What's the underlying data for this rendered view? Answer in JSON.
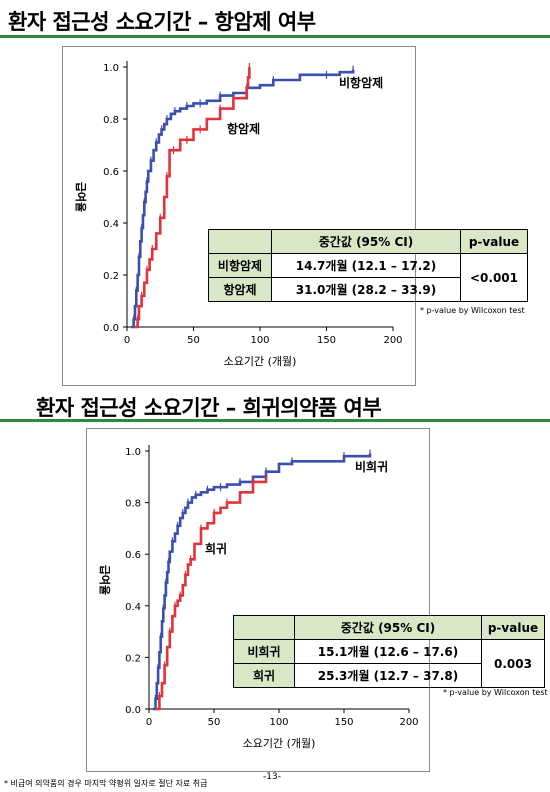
{
  "slide": {
    "title1": "환자 접근성 소요기간 – 항암제 여부",
    "title2": "환자 접근성 소요기간 – 희귀의약품 여부",
    "page_number": "-13-",
    "footnote": "* 비급여 의약품의 경우 마지막 약평위 일자로 절단 자료 취급"
  },
  "colors": {
    "blue": "#3a4fb0",
    "red": "#e2323a",
    "header_green": "#d9e7c7",
    "rule_green": "#2e8b3a"
  },
  "chart_data": [
    {
      "type": "line",
      "ylabel": "급여율",
      "xlabel": "소요기간 (개월)",
      "xlim": [
        0,
        200
      ],
      "ylim": [
        0,
        1.0
      ],
      "xticks": [
        "0",
        "50",
        "100",
        "150",
        "200"
      ],
      "yticks": [
        "0.0",
        "0.2",
        "0.4",
        "0.6",
        "0.8",
        "1.0"
      ],
      "series": [
        {
          "name": "비항암제",
          "color": "#3a4fb0",
          "x": [
            3,
            5,
            6,
            7,
            8,
            9,
            10,
            11,
            12,
            13,
            14,
            15,
            16,
            18,
            20,
            22,
            24,
            26,
            28,
            30,
            33,
            36,
            40,
            45,
            50,
            55,
            60,
            70,
            80,
            90,
            100,
            110,
            130,
            150,
            160,
            170
          ],
          "y": [
            0.0,
            0.03,
            0.08,
            0.14,
            0.2,
            0.27,
            0.33,
            0.38,
            0.43,
            0.48,
            0.52,
            0.56,
            0.6,
            0.64,
            0.68,
            0.71,
            0.74,
            0.76,
            0.78,
            0.8,
            0.82,
            0.83,
            0.84,
            0.85,
            0.86,
            0.86,
            0.87,
            0.89,
            0.9,
            0.92,
            0.93,
            0.95,
            0.97,
            0.97,
            0.98,
            0.99
          ]
        },
        {
          "name": "항암제",
          "color": "#e2323a",
          "x": [
            5,
            8,
            9,
            11,
            13,
            15,
            17,
            19,
            22,
            25,
            28,
            30,
            32,
            35,
            40,
            45,
            50,
            55,
            60,
            70,
            80,
            90,
            91,
            92
          ],
          "y": [
            0.0,
            0.03,
            0.08,
            0.12,
            0.17,
            0.22,
            0.26,
            0.3,
            0.36,
            0.42,
            0.5,
            0.58,
            0.68,
            0.68,
            0.72,
            0.72,
            0.76,
            0.76,
            0.8,
            0.84,
            0.88,
            0.92,
            0.96,
            1.0
          ]
        }
      ],
      "labels": [
        {
          "text": "비항암제",
          "series": 0
        },
        {
          "text": "항암제",
          "series": 1
        }
      ],
      "table": {
        "headers": [
          "",
          "중간값 (95% CI)",
          "p-value"
        ],
        "rows": [
          {
            "label": "비항암제",
            "median": "14.7개월 (12.1 – 17.2)"
          },
          {
            "label": "항암제",
            "median": "31.0개월 (28.2 – 33.9)"
          }
        ],
        "pvalue": "<0.001"
      },
      "note": "* p-value by Wilcoxon test"
    },
    {
      "type": "line",
      "ylabel": "급여율",
      "xlabel": "소요기간 (개월)",
      "xlim": [
        0,
        200
      ],
      "ylim": [
        0,
        1.0
      ],
      "xticks": [
        "0",
        "50",
        "100",
        "150",
        "200"
      ],
      "yticks": [
        "0.0",
        "0.2",
        "0.4",
        "0.6",
        "0.8",
        "1.0"
      ],
      "series": [
        {
          "name": "비희귀",
          "color": "#3a4fb0",
          "x": [
            3,
            5,
            6,
            7,
            8,
            9,
            10,
            11,
            12,
            13,
            14,
            15,
            16,
            18,
            20,
            22,
            24,
            26,
            28,
            30,
            33,
            36,
            40,
            45,
            50,
            55,
            60,
            70,
            80,
            90,
            100,
            110,
            130,
            150,
            160,
            170
          ],
          "y": [
            0.0,
            0.04,
            0.1,
            0.16,
            0.22,
            0.28,
            0.34,
            0.39,
            0.44,
            0.49,
            0.53,
            0.57,
            0.61,
            0.65,
            0.68,
            0.71,
            0.74,
            0.76,
            0.78,
            0.8,
            0.82,
            0.83,
            0.84,
            0.85,
            0.86,
            0.86,
            0.87,
            0.88,
            0.9,
            0.92,
            0.95,
            0.96,
            0.96,
            0.98,
            0.98,
            0.99
          ]
        },
        {
          "name": "희귀",
          "color": "#e2323a",
          "x": [
            5,
            8,
            10,
            12,
            14,
            16,
            18,
            20,
            22,
            24,
            26,
            28,
            30,
            32,
            35,
            40,
            45,
            50,
            55,
            60,
            70,
            80,
            90
          ],
          "y": [
            0.0,
            0.05,
            0.1,
            0.17,
            0.24,
            0.3,
            0.36,
            0.4,
            0.42,
            0.44,
            0.48,
            0.52,
            0.56,
            0.58,
            0.64,
            0.7,
            0.72,
            0.76,
            0.78,
            0.8,
            0.84,
            0.88,
            0.9
          ]
        }
      ],
      "labels": [
        {
          "text": "비희귀",
          "series": 0
        },
        {
          "text": "희귀",
          "series": 1
        }
      ],
      "table": {
        "headers": [
          "",
          "중간값 (95% CI)",
          "p-value"
        ],
        "rows": [
          {
            "label": "비희귀",
            "median": "15.1개월 (12.6 – 17.6)"
          },
          {
            "label": "희귀",
            "median": "25.3개월 (12.7 – 37.8)"
          }
        ],
        "pvalue": "0.003"
      },
      "note": "* p-value by Wilcoxon test"
    }
  ]
}
